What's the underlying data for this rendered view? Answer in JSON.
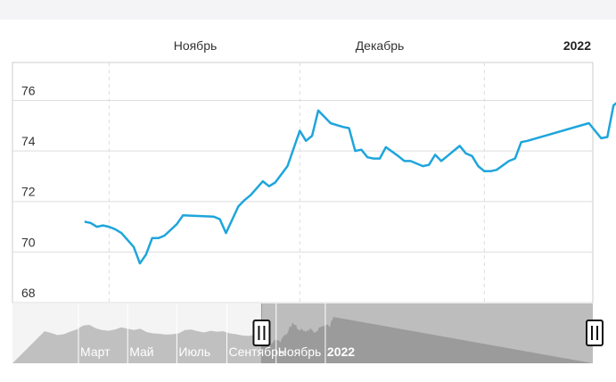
{
  "chart_data": {
    "type": "line",
    "title": "",
    "xlabel": "",
    "ylabel": "",
    "ylim": [
      68,
      77.5
    ],
    "yticks": [
      68,
      70,
      72,
      74,
      76
    ],
    "grid": true,
    "x_ticks": [
      {
        "label": "Ноябрь",
        "x": "2021-11-01"
      },
      {
        "label": "Декабрь",
        "x": "2021-12-01"
      },
      {
        "label": "2022",
        "x": "2022-01-01"
      }
    ],
    "series": [
      {
        "color": "#1ea5dc",
        "x": [
          "2021-10-14",
          "2021-10-15",
          "2021-10-16",
          "2021-10-17",
          "2021-10-18",
          "2021-10-19",
          "2021-10-20",
          "2021-10-22",
          "2021-10-23",
          "2021-10-24",
          "2021-10-25",
          "2021-10-26",
          "2021-10-27",
          "2021-10-29",
          "2021-10-30",
          "2021-11-04",
          "2021-11-05",
          "2021-11-06",
          "2021-11-08",
          "2021-11-09",
          "2021-11-10",
          "2021-11-12",
          "2021-11-13",
          "2021-11-14",
          "2021-11-16",
          "2021-11-18",
          "2021-11-19",
          "2021-11-20",
          "2021-11-21",
          "2021-11-22",
          "2021-11-23",
          "2021-11-25",
          "2021-11-26",
          "2021-11-27",
          "2021-11-28",
          "2021-11-29",
          "2021-11-30",
          "2021-12-01",
          "2021-12-02",
          "2021-12-04",
          "2021-12-05",
          "2021-12-06",
          "2021-12-08",
          "2021-12-09",
          "2021-12-10",
          "2021-12-11",
          "2021-12-12",
          "2021-12-13",
          "2021-12-14",
          "2021-12-15",
          "2021-12-16",
          "2021-12-17",
          "2021-12-18",
          "2021-12-19",
          "2021-12-20",
          "2021-12-22",
          "2021-12-23",
          "2021-12-24",
          "2021-12-25",
          "2022-01-04",
          "2022-01-05",
          "2022-01-06",
          "2022-01-07",
          "2022-01-08",
          "2022-01-09",
          "2022-01-10",
          "2022-01-11"
        ],
        "y": [
          71.2,
          71.15,
          71.0,
          71.05,
          71.0,
          70.9,
          70.75,
          70.2,
          69.55,
          69.9,
          70.55,
          70.55,
          70.65,
          71.1,
          71.45,
          71.4,
          71.3,
          70.75,
          71.8,
          72.05,
          72.25,
          72.8,
          72.6,
          72.75,
          73.4,
          74.8,
          74.4,
          74.6,
          75.6,
          75.35,
          75.1,
          74.95,
          74.9,
          74.0,
          74.05,
          73.75,
          73.7,
          73.7,
          74.15,
          73.8,
          73.6,
          73.6,
          73.4,
          73.45,
          73.85,
          73.6,
          73.8,
          74.0,
          74.2,
          73.9,
          73.8,
          73.4,
          73.2,
          73.2,
          73.25,
          73.6,
          73.7,
          74.35,
          74.4,
          75.1,
          74.8,
          74.5,
          74.55,
          75.8,
          76.0,
          76.3,
          76.85
        ]
      }
    ],
    "navigator": {
      "labels": [
        {
          "text": "Март",
          "x": "2021-03-01"
        },
        {
          "text": "Май",
          "x": "2021-05-01"
        },
        {
          "text": "Июль",
          "x": "2021-07-01"
        },
        {
          "text": "Сентябрь",
          "x": "2021-09-01"
        },
        {
          "text": "Ноябрь",
          "x": "2021-11-01"
        },
        {
          "text": "2022",
          "x": "2022-01-01"
        }
      ],
      "selected_range": [
        "2021-10-14",
        "2022-01-11"
      ]
    }
  }
}
